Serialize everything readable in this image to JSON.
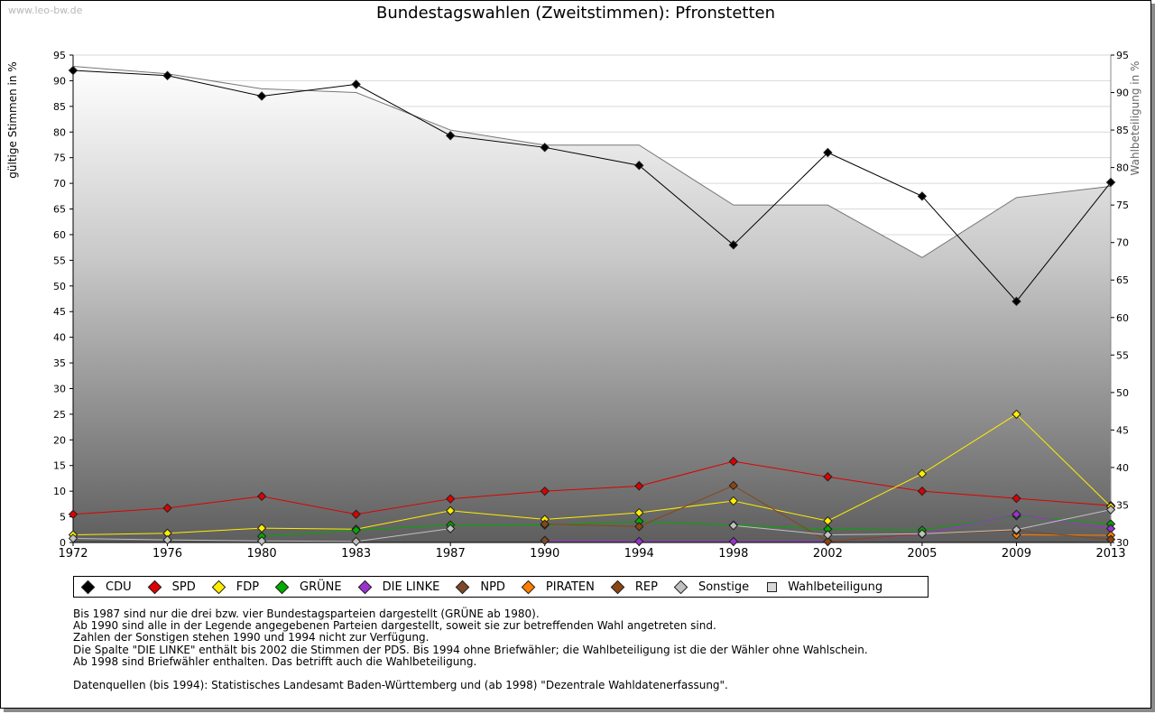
{
  "watermark": "www.leo-bw.de",
  "chart_data": {
    "type": "line",
    "title": "Bundestagswahlen (Zweitstimmen): Pfronstetten",
    "ylabel": "gültige Stimmen in %",
    "y2label": "Wahlbeteiligung in %",
    "ylim": [
      0,
      95
    ],
    "y2lim": [
      30,
      95
    ],
    "yticks": [
      0,
      5,
      10,
      15,
      20,
      25,
      30,
      35,
      40,
      45,
      50,
      55,
      60,
      65,
      70,
      75,
      80,
      85,
      90,
      95
    ],
    "y2ticks": [
      30,
      35,
      40,
      45,
      50,
      55,
      60,
      65,
      70,
      75,
      80,
      85,
      90,
      95
    ],
    "categories": [
      "1972",
      "1976",
      "1980",
      "1983",
      "1987",
      "1990",
      "1994",
      "1998",
      "2002",
      "2005",
      "2009",
      "2013"
    ],
    "series": [
      {
        "name": "CDU",
        "color": "#000000",
        "values": [
          92.0,
          91.0,
          87.0,
          89.3,
          79.3,
          77.0,
          73.5,
          58.0,
          76.0,
          67.5,
          47.0,
          70.2
        ]
      },
      {
        "name": "SPD",
        "color": "#dd0000",
        "values": [
          5.5,
          6.7,
          9.0,
          5.5,
          8.5,
          10.0,
          11.0,
          15.8,
          12.8,
          10.0,
          8.6,
          7.2
        ]
      },
      {
        "name": "FDP",
        "color": "#ffee00",
        "values": [
          1.5,
          1.8,
          2.8,
          2.6,
          6.2,
          4.5,
          5.8,
          8.1,
          4.2,
          13.4,
          25.0,
          7.0
        ]
      },
      {
        "name": "GRÜNE",
        "color": "#00aa00",
        "values": [
          null,
          null,
          1.2,
          2.4,
          3.4,
          3.4,
          4.1,
          3.4,
          2.6,
          2.4,
          5.2,
          3.6
        ]
      },
      {
        "name": "DIE LINKE",
        "color": "#9933cc",
        "values": [
          null,
          null,
          null,
          null,
          null,
          0.4,
          0.2,
          0.2,
          0.2,
          1.6,
          5.5,
          2.7
        ]
      },
      {
        "name": "NPD",
        "color": "#7a4a2a",
        "values": [
          null,
          null,
          null,
          null,
          null,
          0.4,
          null,
          null,
          null,
          null,
          null,
          null
        ]
      },
      {
        "name": "PIRATEN",
        "color": "#ff7f00",
        "values": [
          null,
          null,
          null,
          null,
          null,
          null,
          null,
          null,
          null,
          null,
          1.5,
          1.4
        ]
      },
      {
        "name": "REP",
        "color": "#8b4513",
        "values": [
          null,
          null,
          null,
          null,
          null,
          3.6,
          3.1,
          11.1,
          0.2,
          1.7,
          2.3,
          0.6
        ]
      },
      {
        "name": "Sonstige",
        "color": "#c0c0c0",
        "values": [
          0.8,
          0.5,
          0.3,
          0.2,
          2.7,
          null,
          null,
          3.3,
          1.5,
          1.7,
          2.5,
          6.4
        ]
      },
      {
        "name": "Wahlbeteiligung",
        "color": "#777777",
        "axis": "right",
        "type": "area",
        "values": [
          93.5,
          92.5,
          90.5,
          90.0,
          85.0,
          83.0,
          83.0,
          75.0,
          75.0,
          68.0,
          76.0,
          77.5
        ]
      }
    ],
    "legend": [
      "CDU",
      "SPD",
      "FDP",
      "GRÜNE",
      "DIE LINKE",
      "NPD",
      "PIRATEN",
      "REP",
      "Sonstige",
      "Wahlbeteiligung"
    ]
  },
  "notes": [
    "Bis 1987 sind nur die drei bzw. vier Bundestagsparteien dargestellt (GRÜNE ab 1980).",
    "Ab 1990 sind alle in der Legende angegebenen Parteien dargestellt, soweit sie zur betreffenden Wahl angetreten sind.",
    "Zahlen der Sonstigen stehen 1990 und 1994 nicht zur Verfügung.",
    "Die Spalte \"DIE LINKE\" enthält bis 2002 die Stimmen der PDS. Bis 1994 ohne Briefwähler; die Wahlbeteiligung ist die der Wähler ohne Wahlschein.",
    "Ab 1998 sind Briefwähler enthalten. Das betrifft auch die Wahlbeteiligung."
  ],
  "source_note": "Datenquellen (bis 1994): Statistisches Landesamt Baden-Württemberg und (ab 1998) \"Dezentrale Wahldatenerfassung\"."
}
